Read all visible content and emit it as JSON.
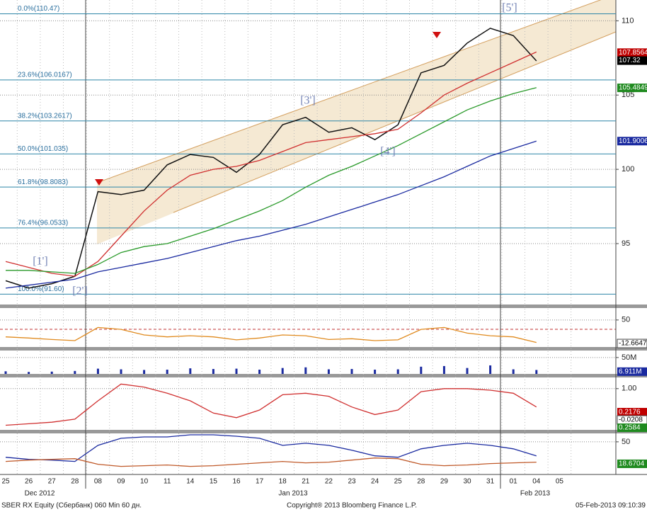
{
  "chart_data": [
    {
      "type": "line",
      "categories": [
        "25",
        "26",
        "27",
        "28",
        "08",
        "09",
        "10",
        "11",
        "14",
        "15",
        "16",
        "17",
        "18",
        "21",
        "22",
        "23",
        "24",
        "25",
        "28",
        "29",
        "30",
        "31",
        "01",
        "04",
        "05"
      ],
      "month_labels": [
        "Dec 2012",
        "Jan 2013",
        "Feb 2013"
      ],
      "series": [
        {
          "color": "#111111",
          "values": [
            92.5,
            92.0,
            92.3,
            92.8,
            98.5,
            98.3,
            98.6,
            100.3,
            101.0,
            100.8,
            99.8,
            101.0,
            103.0,
            103.5,
            102.5,
            102.8,
            102.0,
            103.0,
            106.5,
            107.0,
            108.5,
            109.5,
            109.0,
            107.3,
            null
          ]
        },
        {
          "color": "#d03030",
          "values": [
            93.8,
            93.4,
            93.0,
            92.8,
            93.8,
            95.5,
            97.2,
            98.6,
            99.6,
            100.0,
            100.2,
            100.6,
            101.2,
            101.8,
            102.0,
            102.2,
            102.4,
            102.7,
            103.8,
            105.0,
            105.8,
            106.5,
            107.2,
            107.9,
            null
          ]
        },
        {
          "color": "#2a9a2a",
          "values": [
            93.2,
            93.2,
            93.1,
            93.0,
            93.6,
            94.4,
            94.8,
            95.0,
            95.5,
            96.0,
            96.6,
            97.2,
            97.9,
            98.8,
            99.6,
            100.2,
            100.9,
            101.6,
            102.4,
            103.2,
            104.0,
            104.6,
            105.1,
            105.5,
            null
          ]
        },
        {
          "color": "#1a2aa0",
          "values": [
            92.0,
            92.2,
            92.4,
            92.6,
            93.1,
            93.4,
            93.7,
            94.0,
            94.4,
            94.8,
            95.2,
            95.5,
            95.9,
            96.3,
            96.8,
            97.3,
            97.8,
            98.3,
            98.9,
            99.5,
            100.2,
            100.9,
            101.4,
            101.9,
            null
          ]
        }
      ],
      "ylim": [
        90.9,
        111.4
      ],
      "yticks": [
        95,
        100,
        105,
        110
      ],
      "fib_levels": [
        {
          "value": 110.47,
          "label": "0.0%(110.47)"
        },
        {
          "value": 106.0167,
          "label": "23.6%(106.0167)"
        },
        {
          "value": 103.2617,
          "label": "38.2%(103.2617)"
        },
        {
          "value": 101.035,
          "label": "50.0%(101.035)"
        },
        {
          "value": 98.8083,
          "label": "61.8%(98.8083)"
        },
        {
          "value": 96.0533,
          "label": "76.4%(96.0533)"
        },
        {
          "value": 91.6,
          "label": "100.0%(91.60)"
        }
      ],
      "price_tags": [
        {
          "value": 107.8564,
          "color": "#c00000"
        },
        {
          "value": 107.32,
          "color": "#000000"
        },
        {
          "value": 105.4849,
          "color": "#1f8a1f"
        },
        {
          "value": 101.9006,
          "color": "#1a2aa0"
        }
      ],
      "wave_labels": [
        "[1']",
        "[2']",
        "[3']",
        "[4']",
        "[5']"
      ]
    },
    {
      "type": "line",
      "series": [
        {
          "color": "#e08a1e",
          "values": [
            5,
            2,
            -2,
            -5,
            30,
            25,
            10,
            5,
            8,
            5,
            -3,
            2,
            10,
            8,
            -2,
            0,
            -5,
            -3,
            25,
            30,
            15,
            8,
            5,
            -10,
            null
          ]
        }
      ],
      "ylim": [
        -22,
        78
      ],
      "yticks": [
        50
      ],
      "tags": [
        {
          "value": -12.6647,
          "color": "#ffffff"
        }
      ]
    },
    {
      "type": "bar",
      "color": "#1a2aa0",
      "values": [
        8000000,
        6000000,
        7000000,
        9000000,
        16000000,
        14000000,
        12000000,
        13000000,
        17000000,
        15000000,
        16000000,
        13000000,
        18000000,
        20000000,
        14000000,
        15000000,
        13000000,
        14000000,
        22000000,
        24000000,
        18000000,
        26000000,
        14000000,
        12000000,
        null
      ],
      "ylim": [
        0,
        67000000
      ],
      "yticks": [
        {
          "value": 50000000,
          "label": "50M"
        }
      ],
      "tags": [
        {
          "value": 6911000,
          "label": "6.911M",
          "color": "#1a2aa0"
        }
      ]
    },
    {
      "type": "line",
      "series": [
        {
          "color": "#d03030",
          "values": [
            -0.2,
            -0.15,
            -0.1,
            0,
            0.6,
            1.15,
            1.05,
            0.85,
            0.6,
            0.2,
            0.05,
            0.3,
            0.8,
            0.85,
            0.75,
            0.4,
            0.15,
            0.3,
            0.9,
            1.0,
            1.0,
            0.95,
            0.85,
            0.4,
            null
          ]
        }
      ],
      "ylim": [
        -0.35,
        1.32
      ],
      "yticks": [
        {
          "value": 1,
          "label": "1.00"
        }
      ],
      "tags": [
        {
          "value": 0.2176,
          "color": "#c00000"
        },
        {
          "value": -0.0208,
          "color": "#ffffff"
        },
        {
          "value": 0.2584,
          "color": "#1f8a1f"
        }
      ]
    },
    {
      "type": "line",
      "series": [
        {
          "color": "#1a2aa0",
          "values": [
            28,
            25,
            24,
            22,
            45,
            55,
            57,
            57,
            60,
            60,
            58,
            55,
            45,
            48,
            45,
            38,
            30,
            28,
            40,
            45,
            48,
            45,
            40,
            30,
            null
          ]
        },
        {
          "color": "#c05a2a",
          "values": [
            22,
            24,
            25,
            26,
            18,
            15,
            16,
            17,
            15,
            16,
            18,
            20,
            22,
            20,
            21,
            24,
            27,
            26,
            18,
            16,
            17,
            19,
            20,
            21,
            null
          ]
        }
      ],
      "ylim": [
        5.5,
        61
      ],
      "yticks": [
        50
      ],
      "tags": [
        {
          "value": 18.6704,
          "color": "#1f8a1f"
        }
      ]
    }
  ],
  "footer": {
    "left": "SBER RX Equity (Сбербанк) 060 Min 60 дн.",
    "center": "Copyright® 2013 Bloomberg Finance L.P.",
    "right": "05-Feb-2013 09:10:39"
  }
}
